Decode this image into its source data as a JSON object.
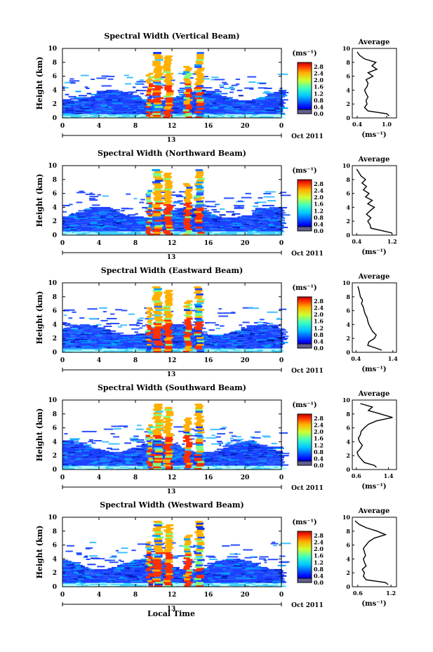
{
  "figure": {
    "x_axis_title": "Local Time",
    "date_label": "Oct 2011",
    "day_marker": "13",
    "colorbar_unit": "(ms⁻¹)",
    "avg_unit": "(ms⁻¹)",
    "ylabel": "Height (km)",
    "avg_title": "Average"
  },
  "chart_data": [
    {
      "type": "heatmap",
      "title": "Spectral Width (Vertical Beam)",
      "ylabel": "Height (km)",
      "x_ticks": [
        "0",
        "4",
        "8",
        "12",
        "16",
        "20",
        "0"
      ],
      "y_ticks": [
        "0",
        "2",
        "4",
        "6",
        "8",
        "10"
      ],
      "xlim": [
        0,
        24
      ],
      "ylim": [
        0,
        10
      ],
      "colorbar_ticks": [
        "0.0",
        "0.4",
        "0.8",
        "1.2",
        "1.6",
        "2.0",
        "2.4",
        "2.8"
      ],
      "average": {
        "x_ticks": [
          "0.4",
          "1.0"
        ],
        "xlim": [
          0.3,
          1.2
        ],
        "height": [
          0.3,
          0.6,
          1.0,
          1.5,
          2.0,
          2.5,
          3.0,
          3.5,
          4.0,
          4.5,
          5.0,
          5.5,
          6.0,
          6.5,
          7.0,
          7.5,
          8.0,
          8.5,
          9.0,
          9.5
        ],
        "value": [
          1.05,
          1.0,
          0.62,
          0.55,
          0.6,
          0.58,
          0.62,
          0.58,
          0.55,
          0.6,
          0.62,
          0.58,
          0.72,
          0.62,
          0.8,
          0.7,
          0.78,
          0.55,
          0.45,
          0.4
        ]
      }
    },
    {
      "type": "heatmap",
      "title": "Spectral Width (Northward Beam)",
      "ylabel": "Height (km)",
      "x_ticks": [
        "0",
        "4",
        "8",
        "12",
        "16",
        "20",
        "0"
      ],
      "y_ticks": [
        "0",
        "2",
        "4",
        "6",
        "8",
        "10"
      ],
      "xlim": [
        0,
        24
      ],
      "ylim": [
        0,
        10
      ],
      "colorbar_ticks": [
        "0.0",
        "0.4",
        "0.8",
        "1.2",
        "1.6",
        "2.0",
        "2.4",
        "2.8"
      ],
      "average": {
        "x_ticks": [
          "0.4",
          "1.2"
        ],
        "xlim": [
          0.3,
          1.3
        ],
        "height": [
          0.3,
          0.6,
          1.0,
          1.5,
          2.0,
          2.5,
          3.0,
          3.5,
          4.0,
          4.5,
          5.0,
          5.5,
          6.0,
          6.5,
          7.0,
          7.5,
          8.0,
          8.5,
          9.0,
          9.5
        ],
        "value": [
          1.2,
          1.0,
          0.72,
          0.7,
          0.65,
          0.72,
          0.62,
          0.7,
          0.8,
          0.65,
          0.75,
          0.6,
          0.68,
          0.55,
          0.62,
          0.52,
          0.6,
          0.5,
          0.45,
          0.4
        ]
      }
    },
    {
      "type": "heatmap",
      "title": "Spectral Width (Eastward Beam)",
      "ylabel": "Height (km)",
      "x_ticks": [
        "0",
        "4",
        "8",
        "12",
        "16",
        "20",
        "0"
      ],
      "y_ticks": [
        "0",
        "2",
        "4",
        "6",
        "8",
        "10"
      ],
      "xlim": [
        0,
        24
      ],
      "ylim": [
        0,
        10
      ],
      "colorbar_ticks": [
        "0.0",
        "0.4",
        "0.8",
        "1.2",
        "1.6",
        "2.0",
        "2.4",
        "2.8"
      ],
      "average": {
        "x_ticks": [
          "0.4",
          "1.4"
        ],
        "xlim": [
          0.3,
          1.5
        ],
        "height": [
          0.3,
          0.6,
          1.0,
          1.5,
          2.0,
          2.5,
          3.0,
          3.5,
          4.0,
          4.5,
          5.0,
          5.5,
          6.0,
          6.5,
          7.0,
          7.5,
          8.0,
          8.5,
          9.0,
          9.5
        ],
        "value": [
          1.1,
          0.95,
          0.72,
          0.75,
          0.9,
          0.95,
          0.85,
          0.8,
          0.75,
          0.72,
          0.7,
          0.65,
          0.62,
          0.6,
          0.55,
          0.58,
          0.52,
          0.5,
          0.48,
          0.45
        ]
      }
    },
    {
      "type": "heatmap",
      "title": "Spectral Width (Southward Beam)",
      "ylabel": "Height (km)",
      "x_ticks": [
        "0",
        "4",
        "8",
        "12",
        "16",
        "20",
        "0"
      ],
      "y_ticks": [
        "0",
        "2",
        "4",
        "6",
        "8",
        "10"
      ],
      "xlim": [
        0,
        24
      ],
      "ylim": [
        0,
        10
      ],
      "colorbar_ticks": [
        "0.0",
        "0.4",
        "0.8",
        "1.2",
        "1.6",
        "2.0",
        "2.4",
        "2.8"
      ],
      "average": {
        "x_ticks": [
          "0.6",
          "1.4"
        ],
        "xlim": [
          0.5,
          1.6
        ],
        "height": [
          0.3,
          0.6,
          1.0,
          1.5,
          2.0,
          2.5,
          3.0,
          3.5,
          4.0,
          4.5,
          5.0,
          5.5,
          6.0,
          6.5,
          7.0,
          7.5,
          8.0,
          8.5,
          9.0,
          9.5
        ],
        "value": [
          1.1,
          1.05,
          0.8,
          0.72,
          0.65,
          0.62,
          0.7,
          0.75,
          0.68,
          0.65,
          0.7,
          0.72,
          0.8,
          0.9,
          1.1,
          1.5,
          1.2,
          0.9,
          1.0,
          0.7
        ]
      }
    },
    {
      "type": "heatmap",
      "title": "Spectral Width (Westward Beam)",
      "ylabel": "Height (km)",
      "x_ticks": [
        "0",
        "4",
        "8",
        "12",
        "16",
        "20",
        "0"
      ],
      "y_ticks": [
        "0",
        "2",
        "4",
        "6",
        "8",
        "10"
      ],
      "xlim": [
        0,
        24
      ],
      "ylim": [
        0,
        10
      ],
      "colorbar_ticks": [
        "0.0",
        "0.4",
        "0.8",
        "1.2",
        "1.6",
        "2.0",
        "2.4",
        "2.8"
      ],
      "average": {
        "x_ticks": [
          "0.6",
          "1.2"
        ],
        "xlim": [
          0.5,
          1.3
        ],
        "height": [
          0.3,
          0.6,
          1.0,
          1.5,
          2.0,
          2.5,
          3.0,
          3.5,
          4.0,
          4.5,
          5.0,
          5.5,
          6.0,
          6.5,
          7.0,
          7.5,
          8.0,
          8.5,
          9.0,
          9.5
        ],
        "value": [
          1.15,
          1.1,
          0.75,
          0.7,
          0.72,
          0.68,
          0.75,
          0.72,
          0.7,
          0.74,
          0.72,
          0.7,
          0.75,
          0.8,
          0.9,
          1.1,
          0.95,
          0.75,
          0.62,
          0.55
        ]
      }
    }
  ]
}
